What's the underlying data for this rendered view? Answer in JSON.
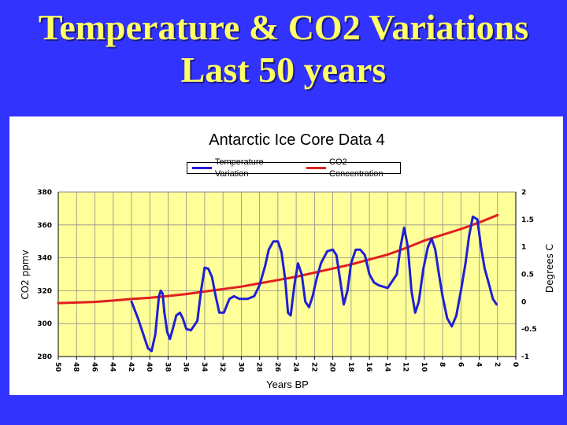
{
  "slide": {
    "title_line1": "Temperature & CO2 Variations",
    "title_line2": "Last 50 years"
  },
  "colors": {
    "background": "#3333ff",
    "title": "#ffff66",
    "plot_area": "#ffff99",
    "temperature": "#1f1fd6",
    "co2": "#e01f1f"
  },
  "chart_data": {
    "type": "line",
    "title": "Antarctic Ice Core Data 4",
    "xlabel": "Years BP",
    "ylabel": "CO2 ppmv",
    "y2label": "Degrees C",
    "xlim": [
      50,
      0
    ],
    "ylim": [
      280,
      380
    ],
    "y2lim": [
      -1,
      2
    ],
    "x_ticks": [
      50,
      48,
      46,
      44,
      42,
      40,
      38,
      36,
      34,
      32,
      30,
      28,
      26,
      24,
      22,
      20,
      18,
      16,
      14,
      12,
      10,
      8,
      6,
      4,
      2,
      0
    ],
    "y_ticks": [
      380,
      360,
      340,
      320,
      300,
      280
    ],
    "y2_ticks": [
      "2",
      "1.5",
      "1",
      "0.5",
      "0",
      "-0.5",
      "-1"
    ],
    "grid": true,
    "legend_position": "top",
    "series": [
      {
        "name": "Temperature Variation",
        "axis": "right",
        "points": [
          [
            42,
            0
          ],
          [
            41.3,
            -0.3
          ],
          [
            40.7,
            -0.6
          ],
          [
            40.2,
            -0.85
          ],
          [
            39.8,
            -0.9
          ],
          [
            39.4,
            -0.6
          ],
          [
            39,
            0.1
          ],
          [
            38.8,
            0.2
          ],
          [
            38.6,
            0.15
          ],
          [
            38.4,
            -0.2
          ],
          [
            38.1,
            -0.55
          ],
          [
            37.8,
            -0.68
          ],
          [
            37.5,
            -0.5
          ],
          [
            37.1,
            -0.25
          ],
          [
            36.7,
            -0.2
          ],
          [
            36.4,
            -0.3
          ],
          [
            36,
            -0.5
          ],
          [
            35.5,
            -0.52
          ],
          [
            34.8,
            -0.35
          ],
          [
            34.4,
            0.2
          ],
          [
            34,
            0.62
          ],
          [
            33.6,
            0.6
          ],
          [
            33.2,
            0.45
          ],
          [
            32.8,
            0.1
          ],
          [
            32.4,
            -0.2
          ],
          [
            31.9,
            -0.2
          ],
          [
            31.3,
            0.05
          ],
          [
            30.8,
            0.1
          ],
          [
            30.2,
            0.05
          ],
          [
            29.3,
            0.05
          ],
          [
            28.6,
            0.1
          ],
          [
            28,
            0.3
          ],
          [
            27.4,
            0.65
          ],
          [
            27,
            0.95
          ],
          [
            26.5,
            1.1
          ],
          [
            26,
            1.1
          ],
          [
            25.6,
            0.9
          ],
          [
            25.2,
            0.4
          ],
          [
            24.9,
            -0.2
          ],
          [
            24.6,
            -0.25
          ],
          [
            24.2,
            0.3
          ],
          [
            23.8,
            0.7
          ],
          [
            23.4,
            0.5
          ],
          [
            23,
            0
          ],
          [
            22.6,
            -0.1
          ],
          [
            22.2,
            0.1
          ],
          [
            21.8,
            0.4
          ],
          [
            21.3,
            0.7
          ],
          [
            20.6,
            0.92
          ],
          [
            20,
            0.95
          ],
          [
            19.6,
            0.85
          ],
          [
            19.2,
            0.4
          ],
          [
            18.8,
            -0.05
          ],
          [
            18.4,
            0.2
          ],
          [
            18,
            0.7
          ],
          [
            17.5,
            0.95
          ],
          [
            17,
            0.95
          ],
          [
            16.5,
            0.85
          ],
          [
            16,
            0.5
          ],
          [
            15.5,
            0.35
          ],
          [
            15,
            0.3
          ],
          [
            14,
            0.25
          ],
          [
            13,
            0.5
          ],
          [
            12.6,
            1
          ],
          [
            12.2,
            1.35
          ],
          [
            11.8,
            1
          ],
          [
            11.4,
            0.2
          ],
          [
            11,
            -0.2
          ],
          [
            10.6,
            0
          ],
          [
            10.1,
            0.6
          ],
          [
            9.6,
            1
          ],
          [
            9.2,
            1.15
          ],
          [
            8.8,
            0.95
          ],
          [
            8.4,
            0.5
          ],
          [
            8,
            0.1
          ],
          [
            7.5,
            -0.3
          ],
          [
            7,
            -0.45
          ],
          [
            6.5,
            -0.25
          ],
          [
            6,
            0.2
          ],
          [
            5.5,
            0.7
          ],
          [
            5.1,
            1.2
          ],
          [
            4.7,
            1.55
          ],
          [
            4.2,
            1.5
          ],
          [
            3.8,
            1
          ],
          [
            3.4,
            0.6
          ],
          [
            2.9,
            0.3
          ],
          [
            2.5,
            0.05
          ],
          [
            2.1,
            -0.05
          ]
        ]
      },
      {
        "name": "CO2 Concentration",
        "axis": "left",
        "points": [
          [
            50,
            312.5
          ],
          [
            46,
            313.2
          ],
          [
            44,
            314
          ],
          [
            42,
            315
          ],
          [
            40,
            315.7
          ],
          [
            38,
            316.8
          ],
          [
            36,
            318
          ],
          [
            34,
            319.5
          ],
          [
            32,
            321
          ],
          [
            30,
            322.5
          ],
          [
            28,
            324.5
          ],
          [
            26,
            326.5
          ],
          [
            24,
            328.5
          ],
          [
            22,
            331
          ],
          [
            20,
            333.5
          ],
          [
            18,
            336
          ],
          [
            16,
            339
          ],
          [
            14,
            342
          ],
          [
            12,
            346
          ],
          [
            10,
            350.5
          ],
          [
            8,
            354
          ],
          [
            6,
            357.5
          ],
          [
            4,
            361.5
          ],
          [
            2,
            366
          ]
        ]
      }
    ]
  }
}
